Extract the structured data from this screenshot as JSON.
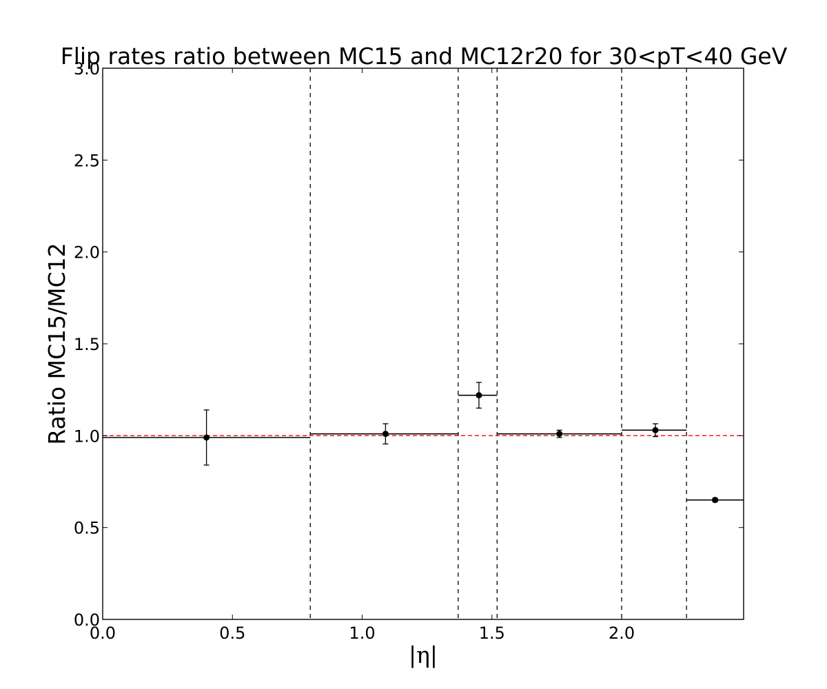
{
  "chart_data": {
    "type": "scatter",
    "title": "Flip rates ratio between MC15 and MC12r20 for 30<pT<40 GeV",
    "xlabel": "|η|",
    "ylabel": "Ratio MC15/MC12",
    "xlim": [
      0.0,
      2.47
    ],
    "ylim": [
      0.0,
      3.0
    ],
    "x_ticks": [
      0.0,
      0.5,
      1.0,
      1.5,
      2.0
    ],
    "x_tick_labels": [
      "0.0",
      "0.5",
      "1.0",
      "1.5",
      "2.0"
    ],
    "y_ticks": [
      0.0,
      0.5,
      1.0,
      1.5,
      2.0,
      2.5,
      3.0
    ],
    "y_tick_labels": [
      "0.0",
      "0.5",
      "1.0",
      "1.5",
      "2.0",
      "2.5",
      "3.0"
    ],
    "grid": false,
    "bin_edges": [
      0.0,
      0.8,
      1.37,
      1.52,
      2.0,
      2.25,
      2.47
    ],
    "series": [
      {
        "bins": [
          {
            "x": 0.4,
            "y": 0.99,
            "err": 0.15,
            "xlow": 0.0,
            "xhigh": 0.8
          },
          {
            "x": 1.09,
            "y": 1.01,
            "err": 0.055,
            "xlow": 0.8,
            "xhigh": 1.37
          },
          {
            "x": 1.45,
            "y": 1.22,
            "err": 0.07,
            "xlow": 1.37,
            "xhigh": 1.52
          },
          {
            "x": 1.76,
            "y": 1.01,
            "err": 0.02,
            "xlow": 1.52,
            "xhigh": 2.0
          },
          {
            "x": 2.13,
            "y": 1.03,
            "err": 0.035,
            "xlow": 2.0,
            "xhigh": 2.25
          },
          {
            "x": 2.36,
            "y": 0.65,
            "err": 0.01,
            "xlow": 2.25,
            "xhigh": 2.47
          }
        ],
        "color": "#000000"
      }
    ],
    "reference_line": {
      "y": 1.0,
      "color": "#ff0000",
      "style": "dashed"
    },
    "divider_color": "#000000"
  }
}
